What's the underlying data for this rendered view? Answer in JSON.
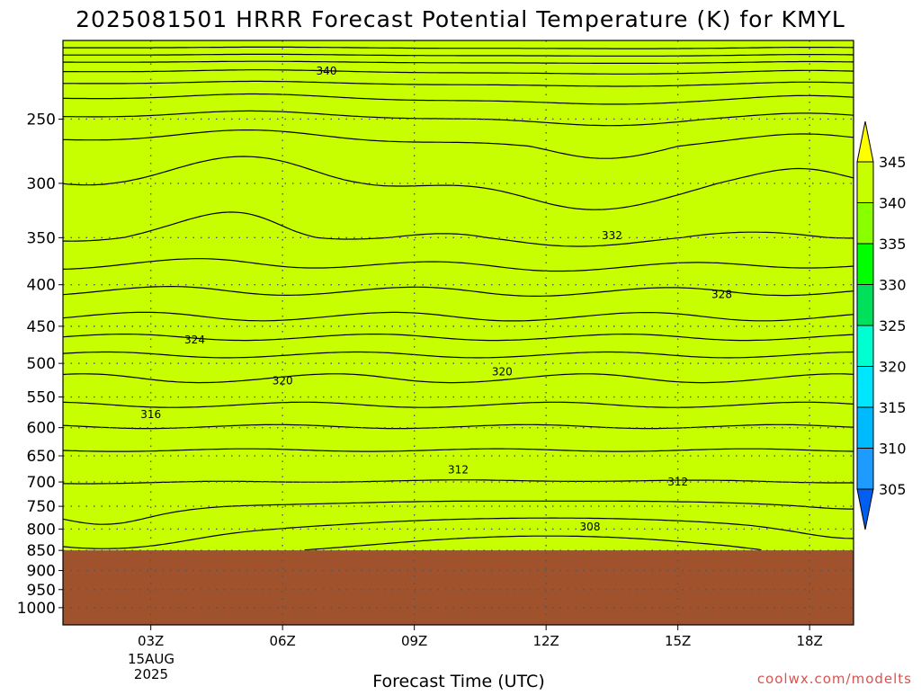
{
  "chart_data": {
    "type": "contour",
    "title": "2025081501 HRRR Forecast Potential Temperature (K) for KMYL",
    "xlabel": "Forecast Time (UTC)",
    "date_label": [
      "15AUG",
      "2025"
    ],
    "credit": "coolwx.com/modelts",
    "x_ticks": [
      "03Z",
      "06Z",
      "09Z",
      "12Z",
      "15Z",
      "18Z"
    ],
    "x_tick_hours": [
      3,
      6,
      9,
      12,
      15,
      18
    ],
    "x_range": [
      1,
      19
    ],
    "y_ticks": [
      250,
      300,
      350,
      400,
      450,
      500,
      550,
      600,
      650,
      700,
      750,
      800,
      850,
      900,
      950,
      1000
    ],
    "y_range_hPa": [
      200,
      1050
    ],
    "y_scale": "log-pressure (inverted)",
    "surface_pressure_hPa": 850,
    "colorbar": {
      "labels": [
        "345",
        "340",
        "335",
        "330",
        "325",
        "320",
        "315",
        "310",
        "305"
      ],
      "levels": [
        345,
        340,
        335,
        330,
        325,
        320,
        315,
        310,
        305
      ],
      "colors": [
        "#ffff00",
        "#c8ff00",
        "#8aff00",
        "#00ff00",
        "#00e05a",
        "#00ffd0",
        "#00e6ff",
        "#00baff",
        "#1e9bff",
        "#005ff0"
      ]
    },
    "fill_bands": [
      {
        "low": 305,
        "high": 310,
        "color": "#0a6cf0"
      },
      {
        "low": 310,
        "high": 315,
        "color": "#1e9bff"
      },
      {
        "low": 315,
        "high": 320,
        "color": "#00baff"
      },
      {
        "low": 320,
        "high": 325,
        "color": "#00e6ff"
      },
      {
        "low": 325,
        "high": 330,
        "color": "#00ffd0"
      },
      {
        "low": 330,
        "high": 335,
        "color": "#00e05a"
      },
      {
        "low": 335,
        "high": 340,
        "color": "#00ff00"
      },
      {
        "low": 340,
        "high": 345,
        "color": "#8aff00"
      },
      {
        "low": 345,
        "high": 350,
        "color": "#c8ff00"
      }
    ],
    "contour_labels": [
      {
        "value": "340",
        "hour": 7.0,
        "pressure": 218
      },
      {
        "value": "332",
        "hour": 13.5,
        "pressure": 348
      },
      {
        "value": "328",
        "hour": 16.0,
        "pressure": 411
      },
      {
        "value": "324",
        "hour": 4.0,
        "pressure": 468
      },
      {
        "value": "320",
        "hour": 6.0,
        "pressure": 525
      },
      {
        "value": "320",
        "hour": 11.0,
        "pressure": 512
      },
      {
        "value": "316",
        "hour": 3.0,
        "pressure": 578
      },
      {
        "value": "312",
        "hour": 10.0,
        "pressure": 676
      },
      {
        "value": "312",
        "hour": 15.0,
        "pressure": 700
      },
      {
        "value": "308",
        "hour": 13.0,
        "pressure": 795
      }
    ],
    "grid": true,
    "colors": {
      "ground": "#a0522d",
      "grid": "#555555",
      "frame": "#000000"
    }
  }
}
